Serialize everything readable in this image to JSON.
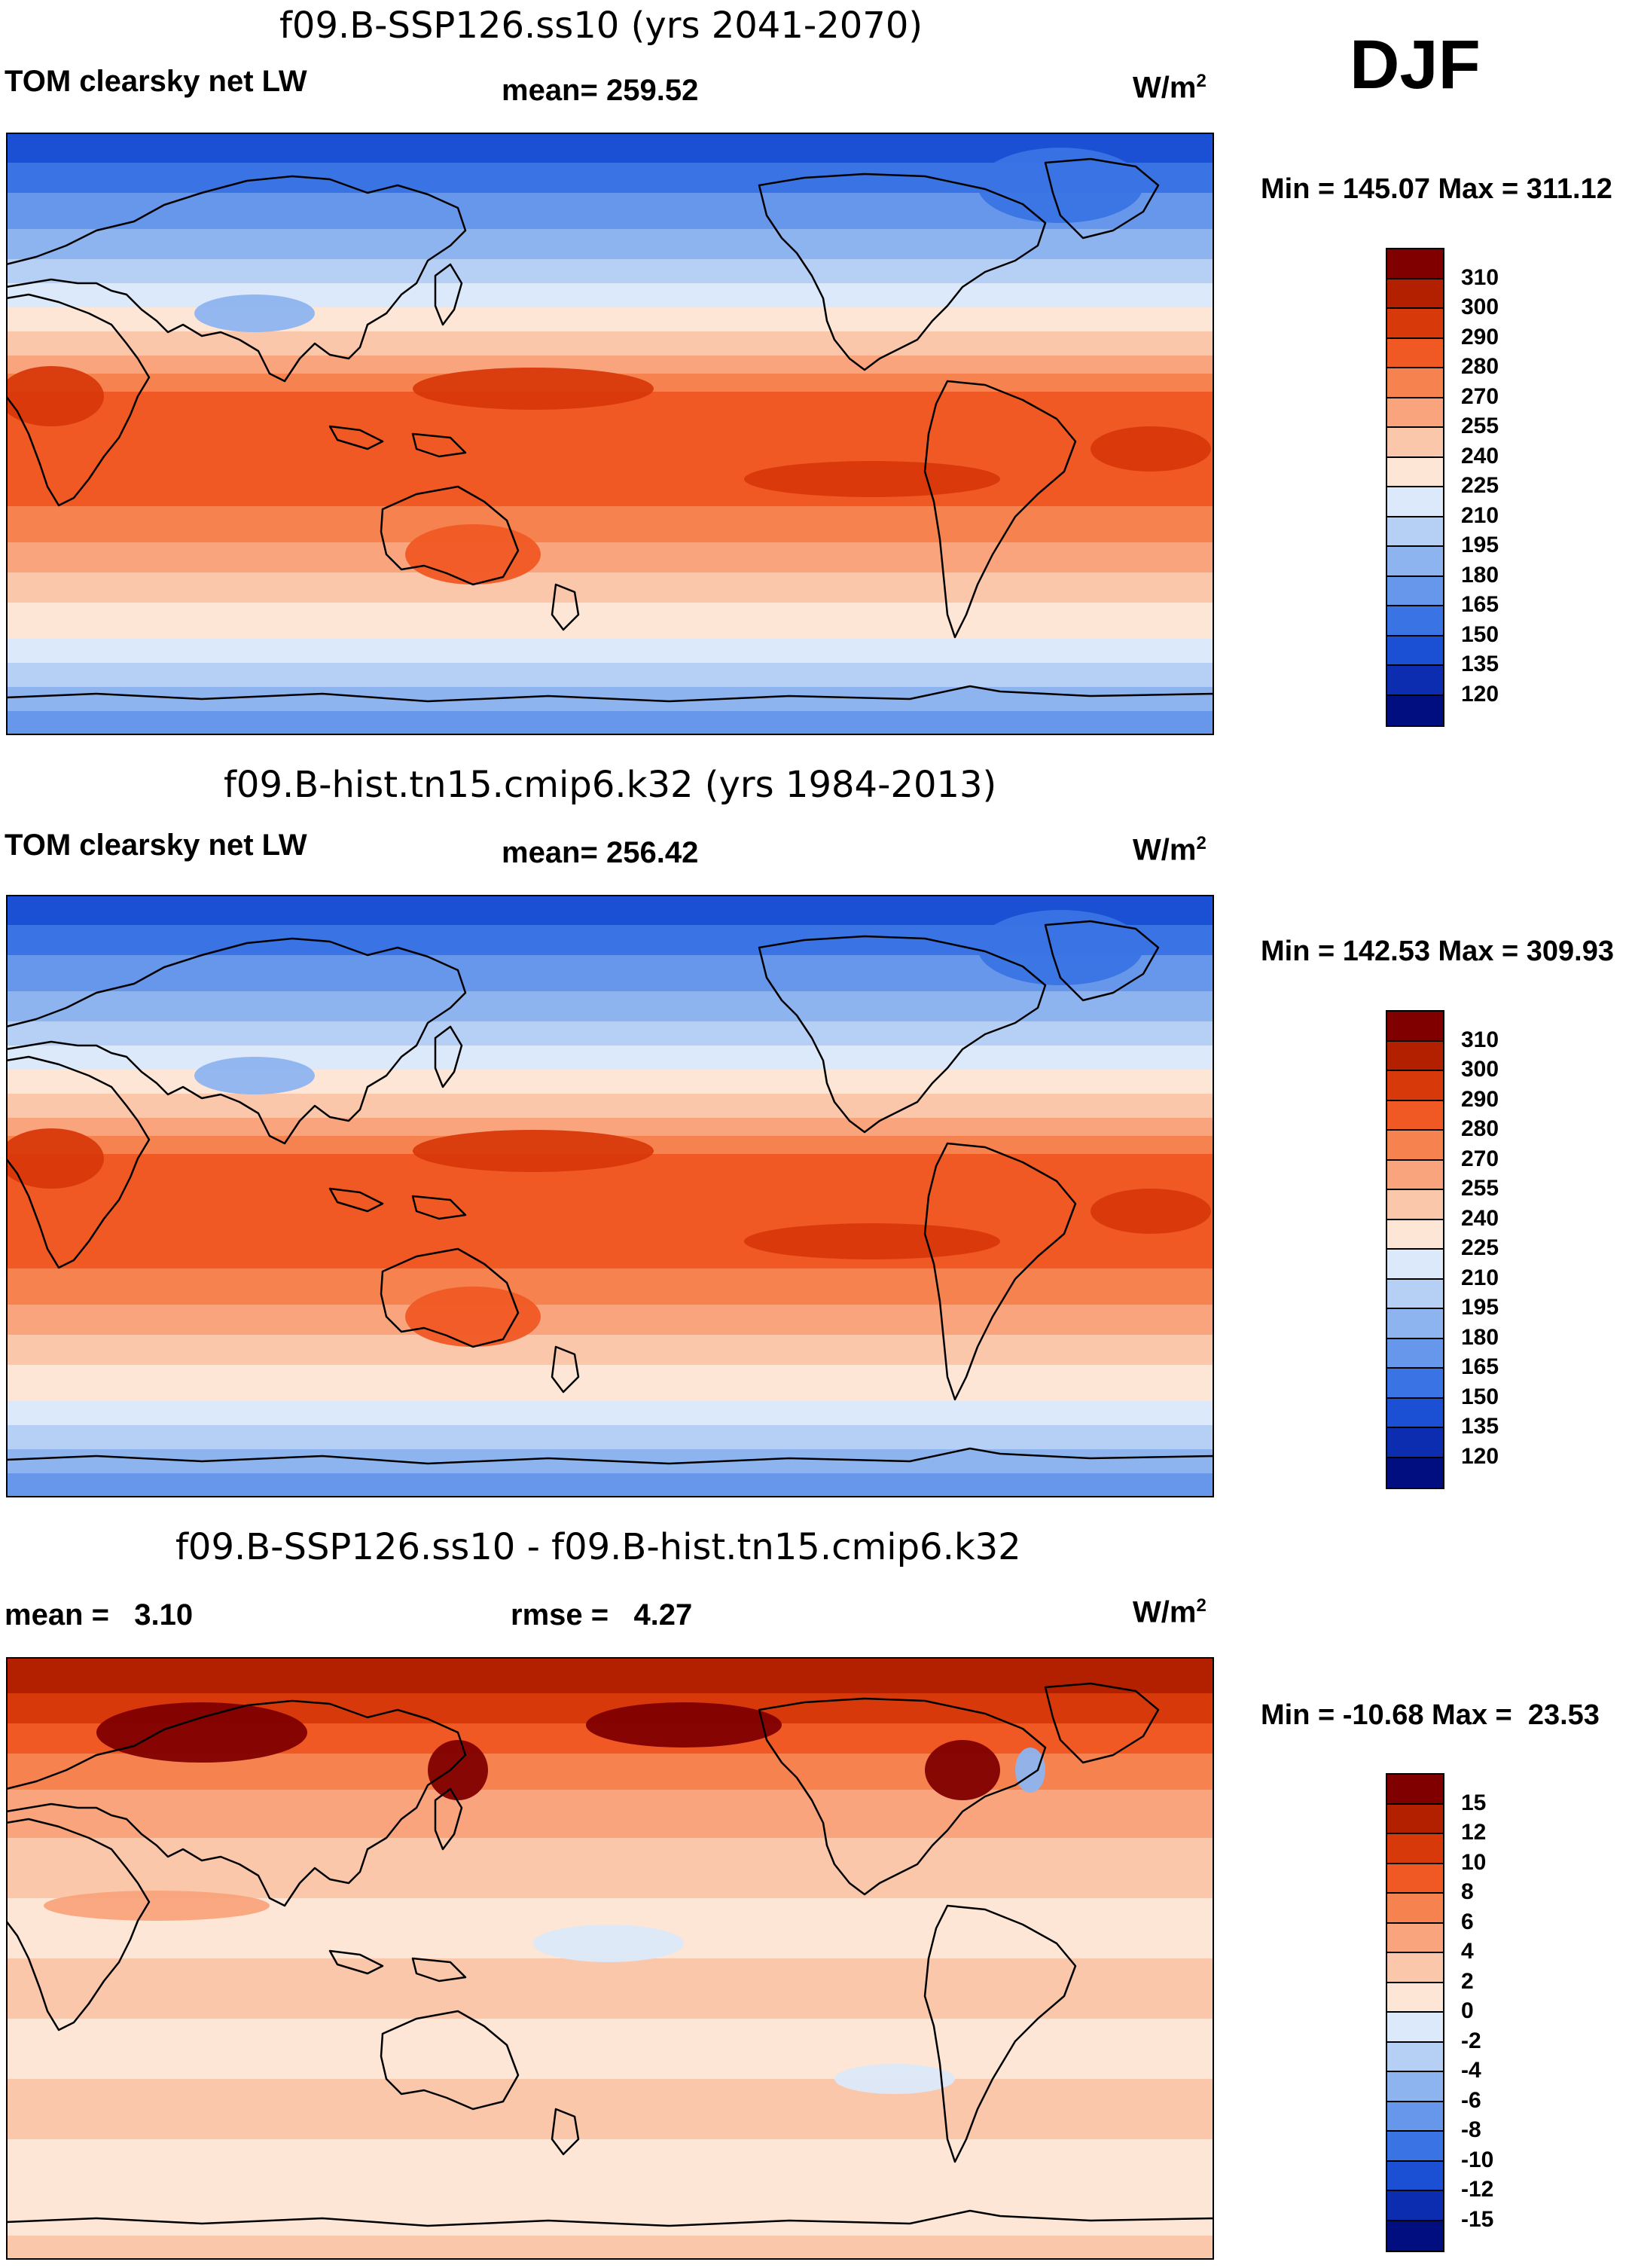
{
  "season": "DJF",
  "panels": [
    {
      "title": "f09.B-SSP126.ss10 (yrs 2041-2070)",
      "variable": "TOM clearsky net LW",
      "mean_label": "mean= 259.52",
      "units": "W/m",
      "units_exp": "2",
      "minmax": "Min = 145.07 Max = 311.12",
      "levels": [
        "310",
        "300",
        "290",
        "280",
        "270",
        "255",
        "240",
        "225",
        "210",
        "195",
        "180",
        "165",
        "150",
        "135",
        "120"
      ],
      "colors": [
        "#800000",
        "#b22000",
        "#d8390b",
        "#f05824",
        "#f6824f",
        "#f9a47c",
        "#fbc7aa",
        "#fde6d6",
        "#dce9fa",
        "#b6d0f5",
        "#8db4ef",
        "#6797ea",
        "#3a73e4",
        "#1b4fd4",
        "#0c2db0",
        "#000e80"
      ],
      "palette": "absolute"
    },
    {
      "title": "f09.B-hist.tn15.cmip6.k32 (yrs 1984-2013)",
      "variable": "TOM clearsky net LW",
      "mean_label": "mean= 256.42",
      "units": "W/m",
      "units_exp": "2",
      "minmax": "Min = 142.53 Max = 309.93",
      "levels": [
        "310",
        "300",
        "290",
        "280",
        "270",
        "255",
        "240",
        "225",
        "210",
        "195",
        "180",
        "165",
        "150",
        "135",
        "120"
      ],
      "colors": [
        "#800000",
        "#b22000",
        "#d8390b",
        "#f05824",
        "#f6824f",
        "#f9a47c",
        "#fbc7aa",
        "#fde6d6",
        "#dce9fa",
        "#b6d0f5",
        "#8db4ef",
        "#6797ea",
        "#3a73e4",
        "#1b4fd4",
        "#0c2db0",
        "#000e80"
      ],
      "palette": "absolute"
    },
    {
      "title": "f09.B-SSP126.ss10 - f09.B-hist.tn15.cmip6.k32",
      "variable": "mean =   3.10",
      "mean_label": "rmse =   4.27",
      "units": "W/m",
      "units_exp": "2",
      "minmax": "Min = -10.68 Max =  23.53",
      "levels": [
        "15",
        "12",
        "10",
        "8",
        "6",
        "4",
        "2",
        "0",
        "-2",
        "-4",
        "-6",
        "-8",
        "-10",
        "-12",
        "-15"
      ],
      "colors": [
        "#800000",
        "#b22000",
        "#d8390b",
        "#f05824",
        "#f6824f",
        "#f9a47c",
        "#fbc7aa",
        "#fde6d6",
        "#dce9fa",
        "#b6d0f5",
        "#8db4ef",
        "#6797ea",
        "#3a73e4",
        "#1b4fd4",
        "#0c2db0",
        "#000e80"
      ],
      "palette": "difference"
    }
  ]
}
